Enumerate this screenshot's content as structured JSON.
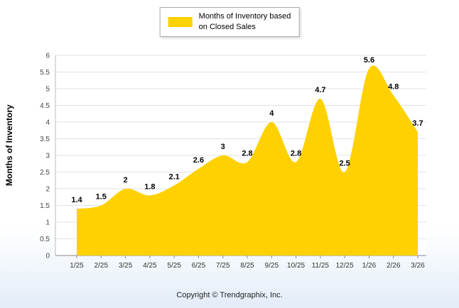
{
  "legend": {
    "label_line1": "Months of Inventory based",
    "label_line2": "on Closed Sales",
    "swatch_color": "#FFD100"
  },
  "chart_data": {
    "type": "area",
    "series_name": "Months of Inventory based on Closed Sales",
    "ylabel": "Months of Inventory",
    "xlabel": "",
    "categories": [
      "1/25",
      "2/25",
      "3/25",
      "4/25",
      "5/25",
      "6/25",
      "7/25",
      "8/25",
      "9/25",
      "10/25",
      "11/25",
      "12/25",
      "1/26",
      "2/26",
      "3/26"
    ],
    "values": [
      1.4,
      1.5,
      2,
      1.8,
      2.1,
      2.6,
      3,
      2.8,
      4,
      2.8,
      4.7,
      2.5,
      5.6,
      4.8,
      3.7
    ],
    "labels": [
      "1.4",
      "1.5",
      "2",
      "1.8",
      "2.1",
      "2.6",
      "3",
      "2.8",
      "4",
      "2.8",
      "4.7",
      "2.5",
      "5.6",
      "4.8",
      "3.7"
    ],
    "ylim": [
      0,
      6
    ],
    "yticks": [
      0,
      0.5,
      1,
      1.5,
      2,
      2.5,
      3,
      3.5,
      4,
      4.5,
      5,
      5.5,
      6
    ],
    "grid": true,
    "legend_position": "top-center",
    "area_color": "#FFD100"
  },
  "footer": {
    "copyright": "Copyright © Trendgraphix, Inc."
  }
}
